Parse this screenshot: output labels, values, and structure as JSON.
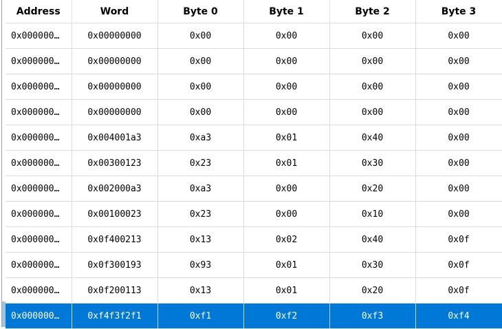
{
  "columns": [
    "Address",
    "Word",
    "Byte 0",
    "Byte 1",
    "Byte 2",
    "Byte 3"
  ],
  "rows": [
    [
      "0x000000…",
      "0x00000000",
      "0x00",
      "0x00",
      "0x00",
      "0x00"
    ],
    [
      "0x000000…",
      "0x00000000",
      "0x00",
      "0x00",
      "0x00",
      "0x00"
    ],
    [
      "0x000000…",
      "0x00000000",
      "0x00",
      "0x00",
      "0x00",
      "0x00"
    ],
    [
      "0x000000…",
      "0x00000000",
      "0x00",
      "0x00",
      "0x00",
      "0x00"
    ],
    [
      "0x000000…",
      "0x004001a3",
      "0xa3",
      "0x01",
      "0x40",
      "0x00"
    ],
    [
      "0x000000…",
      "0x00300123",
      "0x23",
      "0x01",
      "0x30",
      "0x00"
    ],
    [
      "0x000000…",
      "0x002000a3",
      "0xa3",
      "0x00",
      "0x20",
      "0x00"
    ],
    [
      "0x000000…",
      "0x00100023",
      "0x23",
      "0x00",
      "0x10",
      "0x00"
    ],
    [
      "0x000000…",
      "0x0f400213",
      "0x13",
      "0x02",
      "0x40",
      "0x0f"
    ],
    [
      "0x000000…",
      "0x0f300193",
      "0x93",
      "0x01",
      "0x30",
      "0x0f"
    ],
    [
      "0x000000…",
      "0x0f200113",
      "0x13",
      "0x01",
      "0x20",
      "0x0f"
    ],
    [
      "0x000000…",
      "0xf4f3f2f1",
      "0xf1",
      "0xf2",
      "0xf3",
      "0xf4"
    ]
  ],
  "selected_row": 11,
  "selection_color": "#0078d7"
}
